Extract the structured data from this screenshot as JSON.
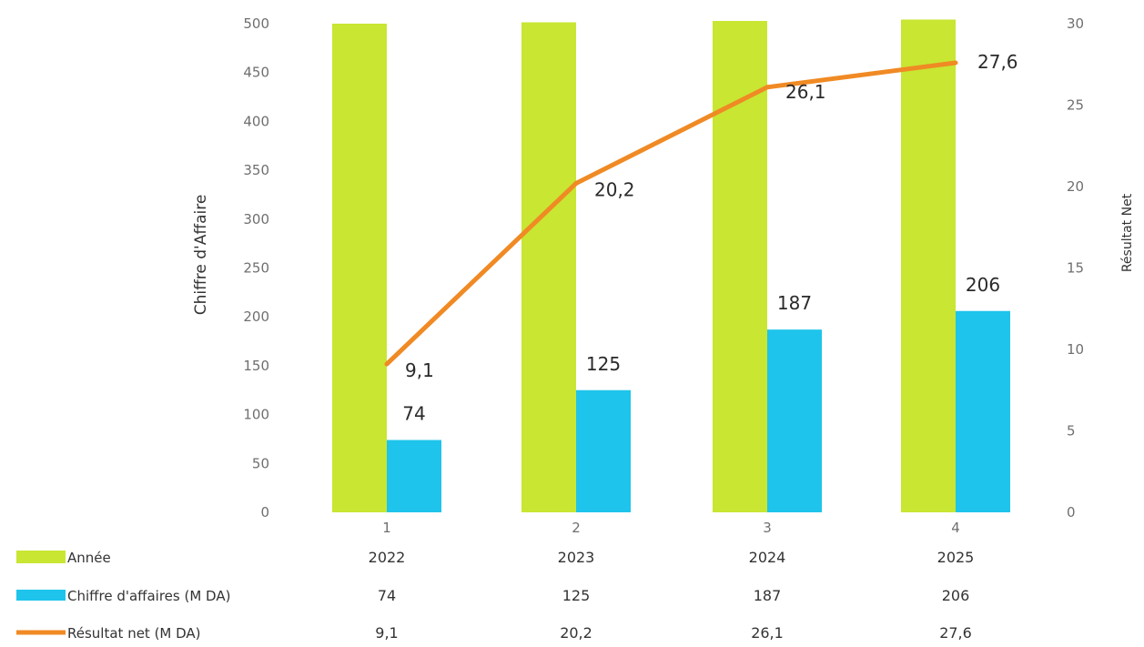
{
  "chart_data": {
    "type": "bar",
    "categories": [
      "1",
      "2",
      "3",
      "4"
    ],
    "series": [
      {
        "name": "Année",
        "type": "bar",
        "axis": "left",
        "color": "#c8e632",
        "values": [
          2022,
          2023,
          2024,
          2025
        ]
      },
      {
        "name": "Chiffre d'affaires (M DA)",
        "type": "bar",
        "axis": "left",
        "color": "#1ec4eb",
        "values": [
          74,
          125,
          187,
          206
        ],
        "data_labels": [
          "74",
          "125",
          "187",
          "206"
        ]
      },
      {
        "name": "Résultat net (M DA)",
        "type": "line",
        "axis": "right",
        "color": "#f08a24",
        "values": [
          9.1,
          20.2,
          26.1,
          27.6
        ],
        "data_labels": [
          "9,1",
          "20,2",
          "26,1",
          "27,6"
        ]
      }
    ],
    "ylabel": "Chiffre d'Affaire",
    "ylabel_right": "Résultat Net",
    "ylim": [
      0,
      500
    ],
    "ylim_right": [
      0,
      30
    ],
    "yticks": [
      "0",
      "50",
      "100",
      "150",
      "200",
      "250",
      "300",
      "350",
      "400",
      "450",
      "500"
    ],
    "yticks_right": [
      "0",
      "5",
      "10",
      "15",
      "20",
      "25",
      "30"
    ],
    "grid": false,
    "legend": "bottom-left data table",
    "data_table": [
      {
        "label": "Année",
        "cells": [
          "2022",
          "2023",
          "2024",
          "2025"
        ]
      },
      {
        "label": "Chiffre d'affaires (M DA)",
        "cells": [
          "74",
          "125",
          "187",
          "206"
        ]
      },
      {
        "label": "Résultat net (M DA)",
        "cells": [
          "9,1",
          "20,2",
          "26,1",
          "27,6"
        ]
      }
    ]
  }
}
